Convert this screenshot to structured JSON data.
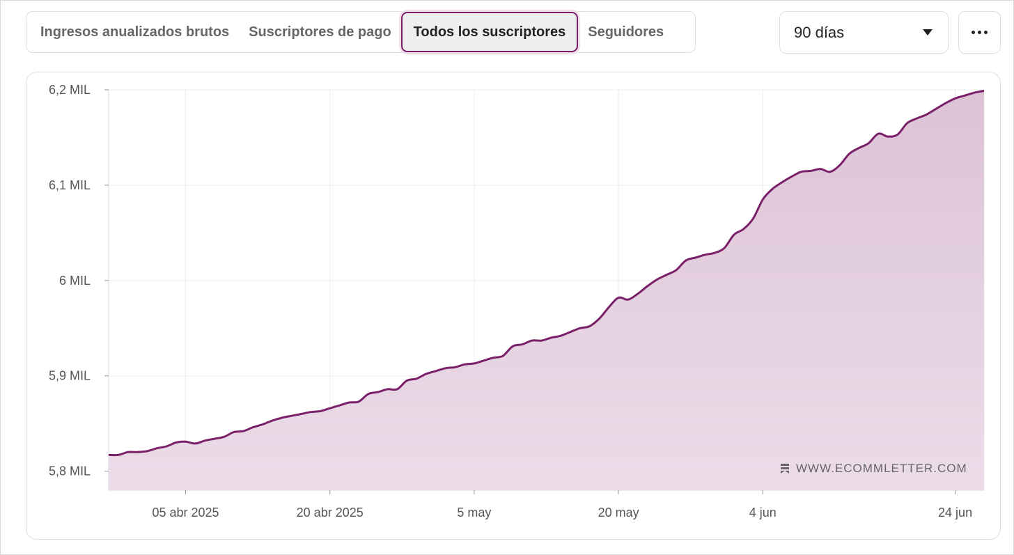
{
  "tabs": [
    {
      "label": "Ingresos anualizados brutos",
      "active": false
    },
    {
      "label": "Suscriptores de pago",
      "active": false
    },
    {
      "label": "Todos los suscriptores",
      "active": true
    },
    {
      "label": "Seguidores",
      "active": false
    }
  ],
  "range_select": {
    "value": "90 días"
  },
  "colors": {
    "accent": "#7a2069",
    "fill_top": "#dcc3d6",
    "fill_bottom": "#ecdce8"
  },
  "watermark": {
    "text": "WWW.ECOMMLETTER.COM"
  },
  "chart_data": {
    "type": "area",
    "xlabel": "",
    "ylabel": "",
    "ylim": [
      5780,
      6200
    ],
    "y_ticks": [
      {
        "value": 5800,
        "label": "5,8 MIL"
      },
      {
        "value": 5900,
        "label": "5,9 MIL"
      },
      {
        "value": 6000,
        "label": "6 MIL"
      },
      {
        "value": 6100,
        "label": "6,1 MIL"
      },
      {
        "value": 6200,
        "label": "6,2 MIL"
      }
    ],
    "x_ticks": [
      {
        "date": "2025-04-05",
        "label": "05 abr 2025"
      },
      {
        "date": "2025-04-20",
        "label": "20 abr 2025"
      },
      {
        "date": "2025-05-05",
        "label": "5 may"
      },
      {
        "date": "2025-05-20",
        "label": "20 may"
      },
      {
        "date": "2025-06-04",
        "label": "4 jun"
      },
      {
        "date": "2025-06-24",
        "label": "24 jun"
      }
    ],
    "xlim": [
      "2025-03-28",
      "2025-06-27"
    ],
    "grid": true,
    "series": [
      {
        "x": [
          "2025-03-28",
          "2025-03-29",
          "2025-03-30",
          "2025-03-31",
          "2025-04-01",
          "2025-04-02",
          "2025-04-03",
          "2025-04-04",
          "2025-04-05",
          "2025-04-06",
          "2025-04-07",
          "2025-04-08",
          "2025-04-09",
          "2025-04-10",
          "2025-04-11",
          "2025-04-12",
          "2025-04-13",
          "2025-04-14",
          "2025-04-15",
          "2025-04-16",
          "2025-04-17",
          "2025-04-18",
          "2025-04-19",
          "2025-04-20",
          "2025-04-21",
          "2025-04-22",
          "2025-04-23",
          "2025-04-24",
          "2025-04-25",
          "2025-04-26",
          "2025-04-27",
          "2025-04-28",
          "2025-04-29",
          "2025-04-30",
          "2025-05-01",
          "2025-05-02",
          "2025-05-03",
          "2025-05-04",
          "2025-05-05",
          "2025-05-06",
          "2025-05-07",
          "2025-05-08",
          "2025-05-09",
          "2025-05-10",
          "2025-05-11",
          "2025-05-12",
          "2025-05-13",
          "2025-05-14",
          "2025-05-15",
          "2025-05-16",
          "2025-05-17",
          "2025-05-18",
          "2025-05-19",
          "2025-05-20",
          "2025-05-21",
          "2025-05-22",
          "2025-05-23",
          "2025-05-24",
          "2025-05-25",
          "2025-05-26",
          "2025-05-27",
          "2025-05-28",
          "2025-05-29",
          "2025-05-30",
          "2025-05-31",
          "2025-06-01",
          "2025-06-02",
          "2025-06-03",
          "2025-06-04",
          "2025-06-05",
          "2025-06-06",
          "2025-06-07",
          "2025-06-08",
          "2025-06-09",
          "2025-06-10",
          "2025-06-11",
          "2025-06-12",
          "2025-06-13",
          "2025-06-14",
          "2025-06-15",
          "2025-06-16",
          "2025-06-17",
          "2025-06-18",
          "2025-06-19",
          "2025-06-20",
          "2025-06-21",
          "2025-06-22",
          "2025-06-23",
          "2025-06-24",
          "2025-06-25",
          "2025-06-26",
          "2025-06-27"
        ],
        "values": [
          5817,
          5817,
          5820,
          5820,
          5821,
          5824,
          5826,
          5830,
          5831,
          5829,
          5832,
          5834,
          5836,
          5841,
          5842,
          5846,
          5849,
          5853,
          5856,
          5858,
          5860,
          5862,
          5863,
          5866,
          5869,
          5872,
          5873,
          5881,
          5883,
          5886,
          5886,
          5895,
          5897,
          5902,
          5905,
          5908,
          5909,
          5912,
          5913,
          5916,
          5919,
          5921,
          5931,
          5933,
          5937,
          5937,
          5940,
          5942,
          5946,
          5950,
          5952,
          5960,
          5972,
          5982,
          5980,
          5986,
          5994,
          6001,
          6006,
          6011,
          6021,
          6024,
          6027,
          6029,
          6034,
          6048,
          6054,
          6065,
          6085,
          6096,
          6103,
          6109,
          6114,
          6115,
          6117,
          6114,
          6121,
          6133,
          6139,
          6144,
          6154,
          6151,
          6153,
          6165,
          6170,
          6174,
          6180,
          6186,
          6191,
          6194,
          6197,
          6199
        ]
      }
    ]
  }
}
